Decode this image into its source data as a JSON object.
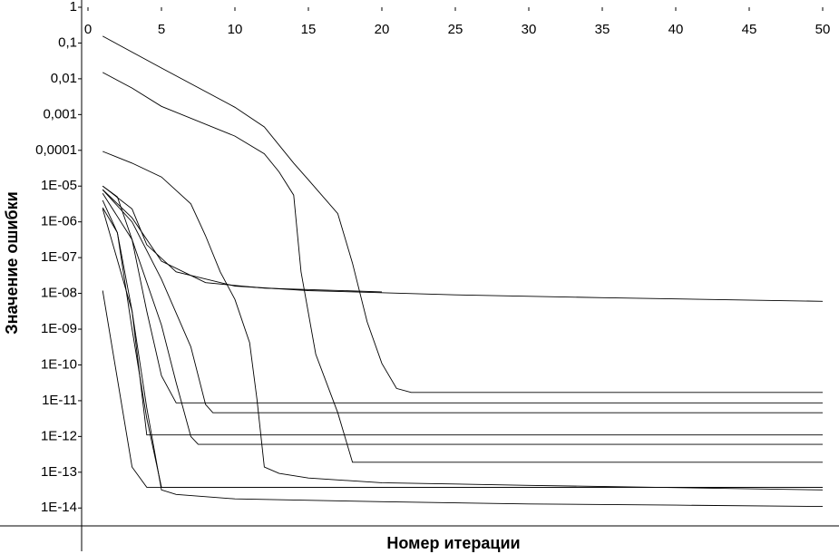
{
  "chart_data": {
    "type": "line",
    "ylabel": "Значение ошибки",
    "xlabel": "Номер итерации",
    "xlim": [
      0,
      50
    ],
    "xticks": [
      0,
      5,
      10,
      15,
      20,
      25,
      30,
      35,
      40,
      45,
      50
    ],
    "ylim": [
      3.16e-15,
      1
    ],
    "log_y": true,
    "yticks": [
      1,
      {
        "value": 0.1,
        "label": "0,1"
      },
      {
        "value": 0.01,
        "label": "0,01"
      },
      {
        "value": 0.001,
        "label": "0,001"
      },
      {
        "value": 0.0001,
        "label": "0,0001"
      },
      {
        "value": 1e-05,
        "label": "1E-05"
      },
      {
        "value": 1e-06,
        "label": "1E-06"
      },
      {
        "value": 1e-07,
        "label": "1E-07"
      },
      {
        "value": 1e-08,
        "label": "1E-08"
      },
      {
        "value": 1e-09,
        "label": "1E-09"
      },
      {
        "value": 1e-10,
        "label": "1E-10"
      },
      {
        "value": 1e-11,
        "label": "1E-11"
      },
      {
        "value": 1e-12,
        "label": "1E-12"
      },
      {
        "value": 1e-13,
        "label": "1E-13"
      },
      {
        "value": 1e-14,
        "label": "1E-14"
      }
    ],
    "grid": false,
    "color": "#000000",
    "series": [
      {
        "x": [
          1,
          5,
          10,
          12,
          14,
          15,
          17,
          18,
          19,
          20,
          21,
          22,
          50
        ],
        "values": [
          0.155,
          0.02,
          0.0016,
          0.00045,
          4.4e-05,
          1.5e-05,
          1.7e-06,
          7e-08,
          1.6e-09,
          1.1e-10,
          2.2e-11,
          1.7e-11,
          1.7e-11
        ]
      },
      {
        "x": [
          1,
          3,
          5,
          10,
          12,
          13,
          14,
          14.5,
          15.5,
          17,
          18,
          50
        ],
        "values": [
          0.015,
          0.0055,
          0.0017,
          0.00025,
          8e-05,
          2.5e-05,
          5.6e-06,
          4e-08,
          2e-10,
          4.6e-12,
          1.9e-13,
          1.9e-13
        ]
      },
      {
        "x": [
          1,
          3,
          5,
          7,
          8,
          9,
          10,
          11,
          11.5,
          12,
          13,
          15,
          20,
          30,
          50
        ],
        "values": [
          9.3e-05,
          4.4e-05,
          1.8e-05,
          3.2e-06,
          4.1e-07,
          4e-08,
          6.8e-09,
          4.2e-10,
          1.1e-11,
          1.4e-13,
          9.3e-14,
          6.9e-14,
          5.1e-14,
          4.3e-14,
          3.2e-14
        ]
      },
      {
        "x": [
          1,
          3,
          4,
          6,
          10,
          15,
          25,
          35,
          50
        ],
        "values": [
          1e-05,
          2.3e-06,
          2.3e-07,
          4e-08,
          1.6e-08,
          1.2e-08,
          9.1e-09,
          7.6e-09,
          6e-09
        ]
      },
      {
        "x": [
          1,
          3,
          5,
          8,
          12,
          20
        ],
        "values": [
          8e-06,
          1.3e-06,
          8e-08,
          2e-08,
          1.4e-08,
          1.1e-08
        ]
      },
      {
        "x": [
          1,
          2,
          3,
          4,
          5,
          6,
          50
        ],
        "values": [
          1e-05,
          5e-06,
          3.2e-07,
          3.2e-09,
          5e-11,
          8.7e-12,
          8.7e-12
        ]
      },
      {
        "x": [
          1,
          3,
          5,
          7,
          8,
          8.5,
          50
        ],
        "values": [
          7.9e-06,
          1e-06,
          2.5e-08,
          3.2e-10,
          7.9e-12,
          4.6e-12,
          4.6e-12
        ]
      },
      {
        "x": [
          1,
          2,
          3,
          4,
          50
        ],
        "values": [
          2.5e-06,
          5e-07,
          3.2e-09,
          1.1e-12,
          1.1e-12
        ]
      },
      {
        "x": [
          1,
          3,
          5,
          6,
          7,
          7.5,
          50
        ],
        "values": [
          6.3e-06,
          3.2e-07,
          1.3e-09,
          3.2e-11,
          1e-12,
          6e-13,
          6e-13
        ]
      },
      {
        "x": [
          1,
          3,
          4,
          50
        ],
        "values": [
          1.2e-08,
          1.4e-13,
          3.8e-14,
          3.8e-14
        ]
      },
      {
        "x": [
          1,
          2,
          3,
          4,
          5,
          50
        ],
        "values": [
          4e-06,
          5e-07,
          1e-09,
          3.2e-12,
          3.8e-14,
          3.8e-14
        ]
      },
      {
        "x": [
          1,
          3,
          4,
          5,
          6,
          10,
          20,
          30,
          40,
          50
        ],
        "values": [
          2.3e-06,
          3.2e-09,
          6.3e-12,
          3.2e-14,
          2.4e-14,
          1.8e-14,
          1.5e-14,
          1.3e-14,
          1.2e-14,
          1.1e-14
        ]
      }
    ]
  }
}
